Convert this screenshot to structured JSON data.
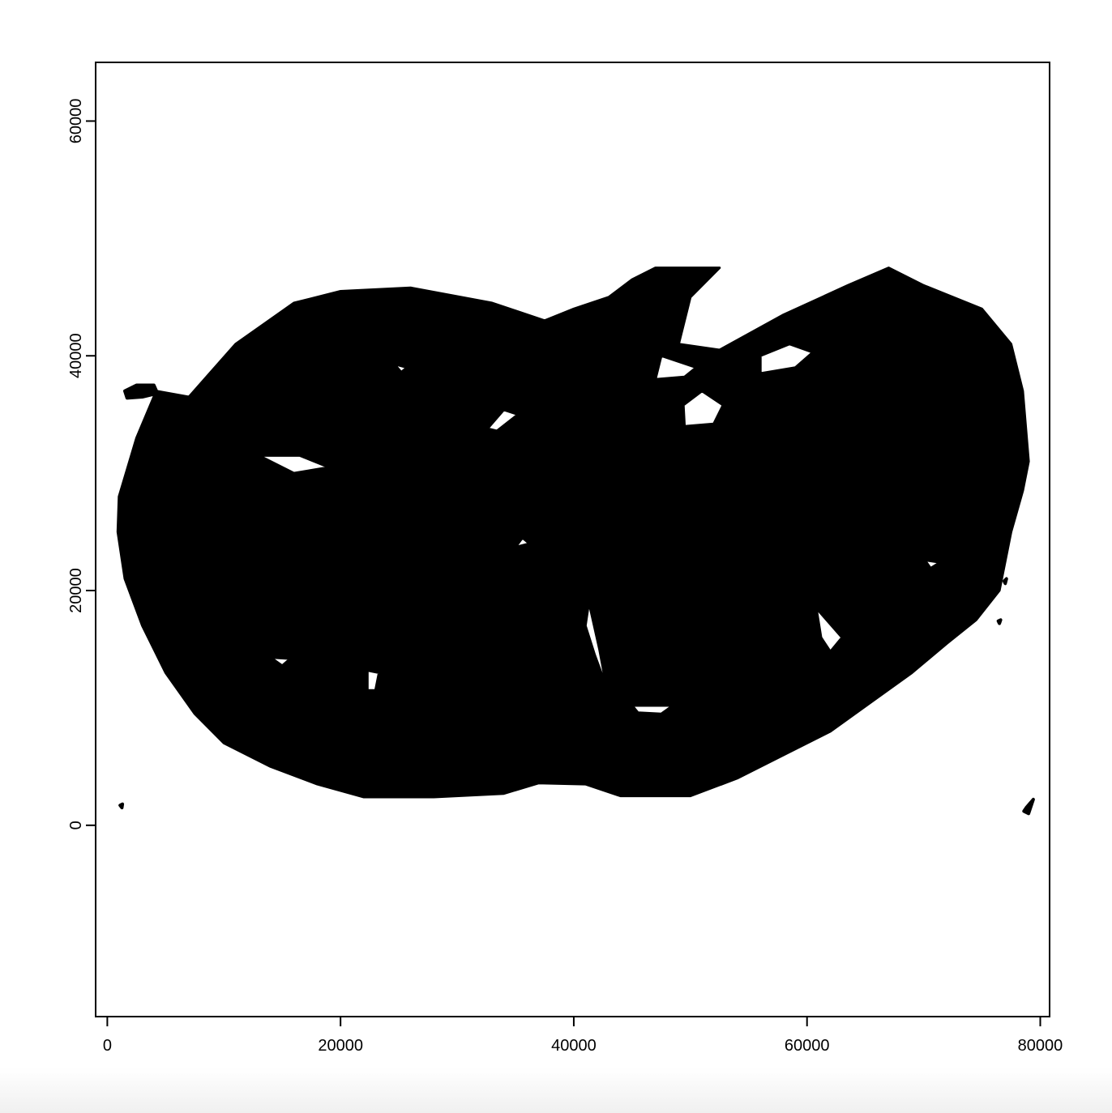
{
  "chart_data": {
    "type": "scatter",
    "title": "",
    "xlabel": "",
    "ylabel": "",
    "xlim": [
      -1000,
      80800
    ],
    "ylim": [
      -16300,
      65000
    ],
    "x_ticks": [
      0,
      20000,
      40000,
      60000,
      80000
    ],
    "y_ticks": [
      0,
      20000,
      40000,
      60000
    ],
    "x_tick_labels": [
      "0",
      "20000",
      "40000",
      "60000",
      "80000"
    ],
    "y_tick_labels": [
      "0",
      "20000",
      "40000",
      "60000"
    ],
    "grid": false,
    "legend": "none",
    "point_color": "#000000",
    "series": [
      {
        "points_region": {
          "outline": [
            [
              1000,
              28000
            ],
            [
              2500,
              33000
            ],
            [
              4200,
              37000
            ],
            [
              7000,
              36500
            ],
            [
              11000,
              41000
            ],
            [
              16000,
              44500
            ],
            [
              20000,
              45500
            ],
            [
              26000,
              45800
            ],
            [
              33000,
              44500
            ],
            [
              37500,
              43000
            ],
            [
              40000,
              44000
            ],
            [
              43000,
              45000
            ],
            [
              45000,
              46500
            ],
            [
              47000,
              47500
            ],
            [
              52500,
              47500
            ],
            [
              50000,
              45000
            ],
            [
              49000,
              41000
            ],
            [
              52500,
              40500
            ],
            [
              58000,
              43500
            ],
            [
              63500,
              46000
            ],
            [
              67000,
              47500
            ],
            [
              70000,
              46000
            ],
            [
              75000,
              44000
            ],
            [
              77500,
              41000
            ],
            [
              78500,
              37000
            ],
            [
              79000,
              31000
            ],
            [
              78500,
              28500
            ],
            [
              77500,
              25000
            ],
            [
              76500,
              20000
            ],
            [
              74500,
              17500
            ],
            [
              72000,
              15500
            ],
            [
              69000,
              13000
            ],
            [
              65500,
              10500
            ],
            [
              62000,
              8000
            ],
            [
              58000,
              6000
            ],
            [
              54000,
              4000
            ],
            [
              50000,
              2500
            ],
            [
              44000,
              2500
            ],
            [
              41000,
              3500
            ],
            [
              37000,
              3600
            ],
            [
              34000,
              2700
            ],
            [
              28000,
              2400
            ],
            [
              22000,
              2400
            ],
            [
              18000,
              3500
            ],
            [
              14000,
              5000
            ],
            [
              10000,
              7000
            ],
            [
              7500,
              9500
            ],
            [
              5000,
              13000
            ],
            [
              3000,
              17000
            ],
            [
              1500,
              21000
            ],
            [
              900,
              25000
            ]
          ],
          "holes": [
            [
              [
                47000,
                38000
              ],
              [
                49500,
                38200
              ],
              [
                50500,
                39000
              ],
              [
                47500,
                40000
              ]
            ],
            [
              [
                49500,
                34000
              ],
              [
                52000,
                34200
              ],
              [
                52800,
                35800
              ],
              [
                51000,
                37000
              ],
              [
                49400,
                35800
              ]
            ],
            [
              [
                56000,
                38500
              ],
              [
                59000,
                39000
              ],
              [
                60500,
                40300
              ],
              [
                58500,
                41000
              ],
              [
                56000,
                40000
              ]
            ],
            [
              [
                13000,
                31500
              ],
              [
                16000,
                30000
              ],
              [
                19000,
                30500
              ],
              [
                16500,
                31500
              ]
            ],
            [
              [
                35000,
                23700
              ],
              [
                36200,
                24000
              ],
              [
                35600,
                24500
              ]
            ],
            [
              [
                41300,
                19000
              ],
              [
                42200,
                15000
              ],
              [
                42800,
                11800
              ],
              [
                41800,
                14500
              ],
              [
                41000,
                17000
              ]
            ],
            [
              [
                60800,
                18500
              ],
              [
                63000,
                16000
              ],
              [
                62000,
                14800
              ],
              [
                61200,
                16000
              ]
            ],
            [
              [
                22300,
                13200
              ],
              [
                23300,
                13000
              ],
              [
                23000,
                11500
              ],
              [
                22300,
                11500
              ]
            ],
            [
              [
                45000,
                10200
              ],
              [
                48500,
                10200
              ],
              [
                47500,
                9500
              ],
              [
                45500,
                9600
              ]
            ],
            [
              [
                14000,
                14300
              ],
              [
                15700,
                14200
              ],
              [
                15000,
                13600
              ]
            ],
            [
              [
                24600,
                39300
              ],
              [
                25700,
                39000
              ],
              [
                25200,
                38600
              ]
            ],
            [
              [
                32600,
                33800
              ],
              [
                34000,
                35400
              ],
              [
                35200,
                35000
              ],
              [
                33400,
                33600
              ]
            ],
            [
              [
                70100,
                22600
              ],
              [
                71400,
                22400
              ],
              [
                70600,
                21900
              ]
            ]
          ],
          "islands": [
            [
              [
                1500,
                37000
              ],
              [
                2500,
                37500
              ],
              [
                4000,
                37500
              ],
              [
                4300,
                36800
              ],
              [
                3000,
                36500
              ],
              [
                1700,
                36400
              ]
            ],
            [
              [
                78800,
                1500
              ],
              [
                79400,
                2200
              ],
              [
                79000,
                1000
              ],
              [
                78600,
                1200
              ]
            ],
            [
              [
                1100,
                1700
              ],
              [
                1300,
                1800
              ],
              [
                1250,
                1500
              ]
            ],
            [
              [
                76900,
                20800
              ],
              [
                77100,
                21000
              ],
              [
                77000,
                20600
              ]
            ],
            [
              [
                76400,
                17400
              ],
              [
                76600,
                17500
              ],
              [
                76500,
                17200
              ]
            ]
          ]
        }
      }
    ]
  }
}
